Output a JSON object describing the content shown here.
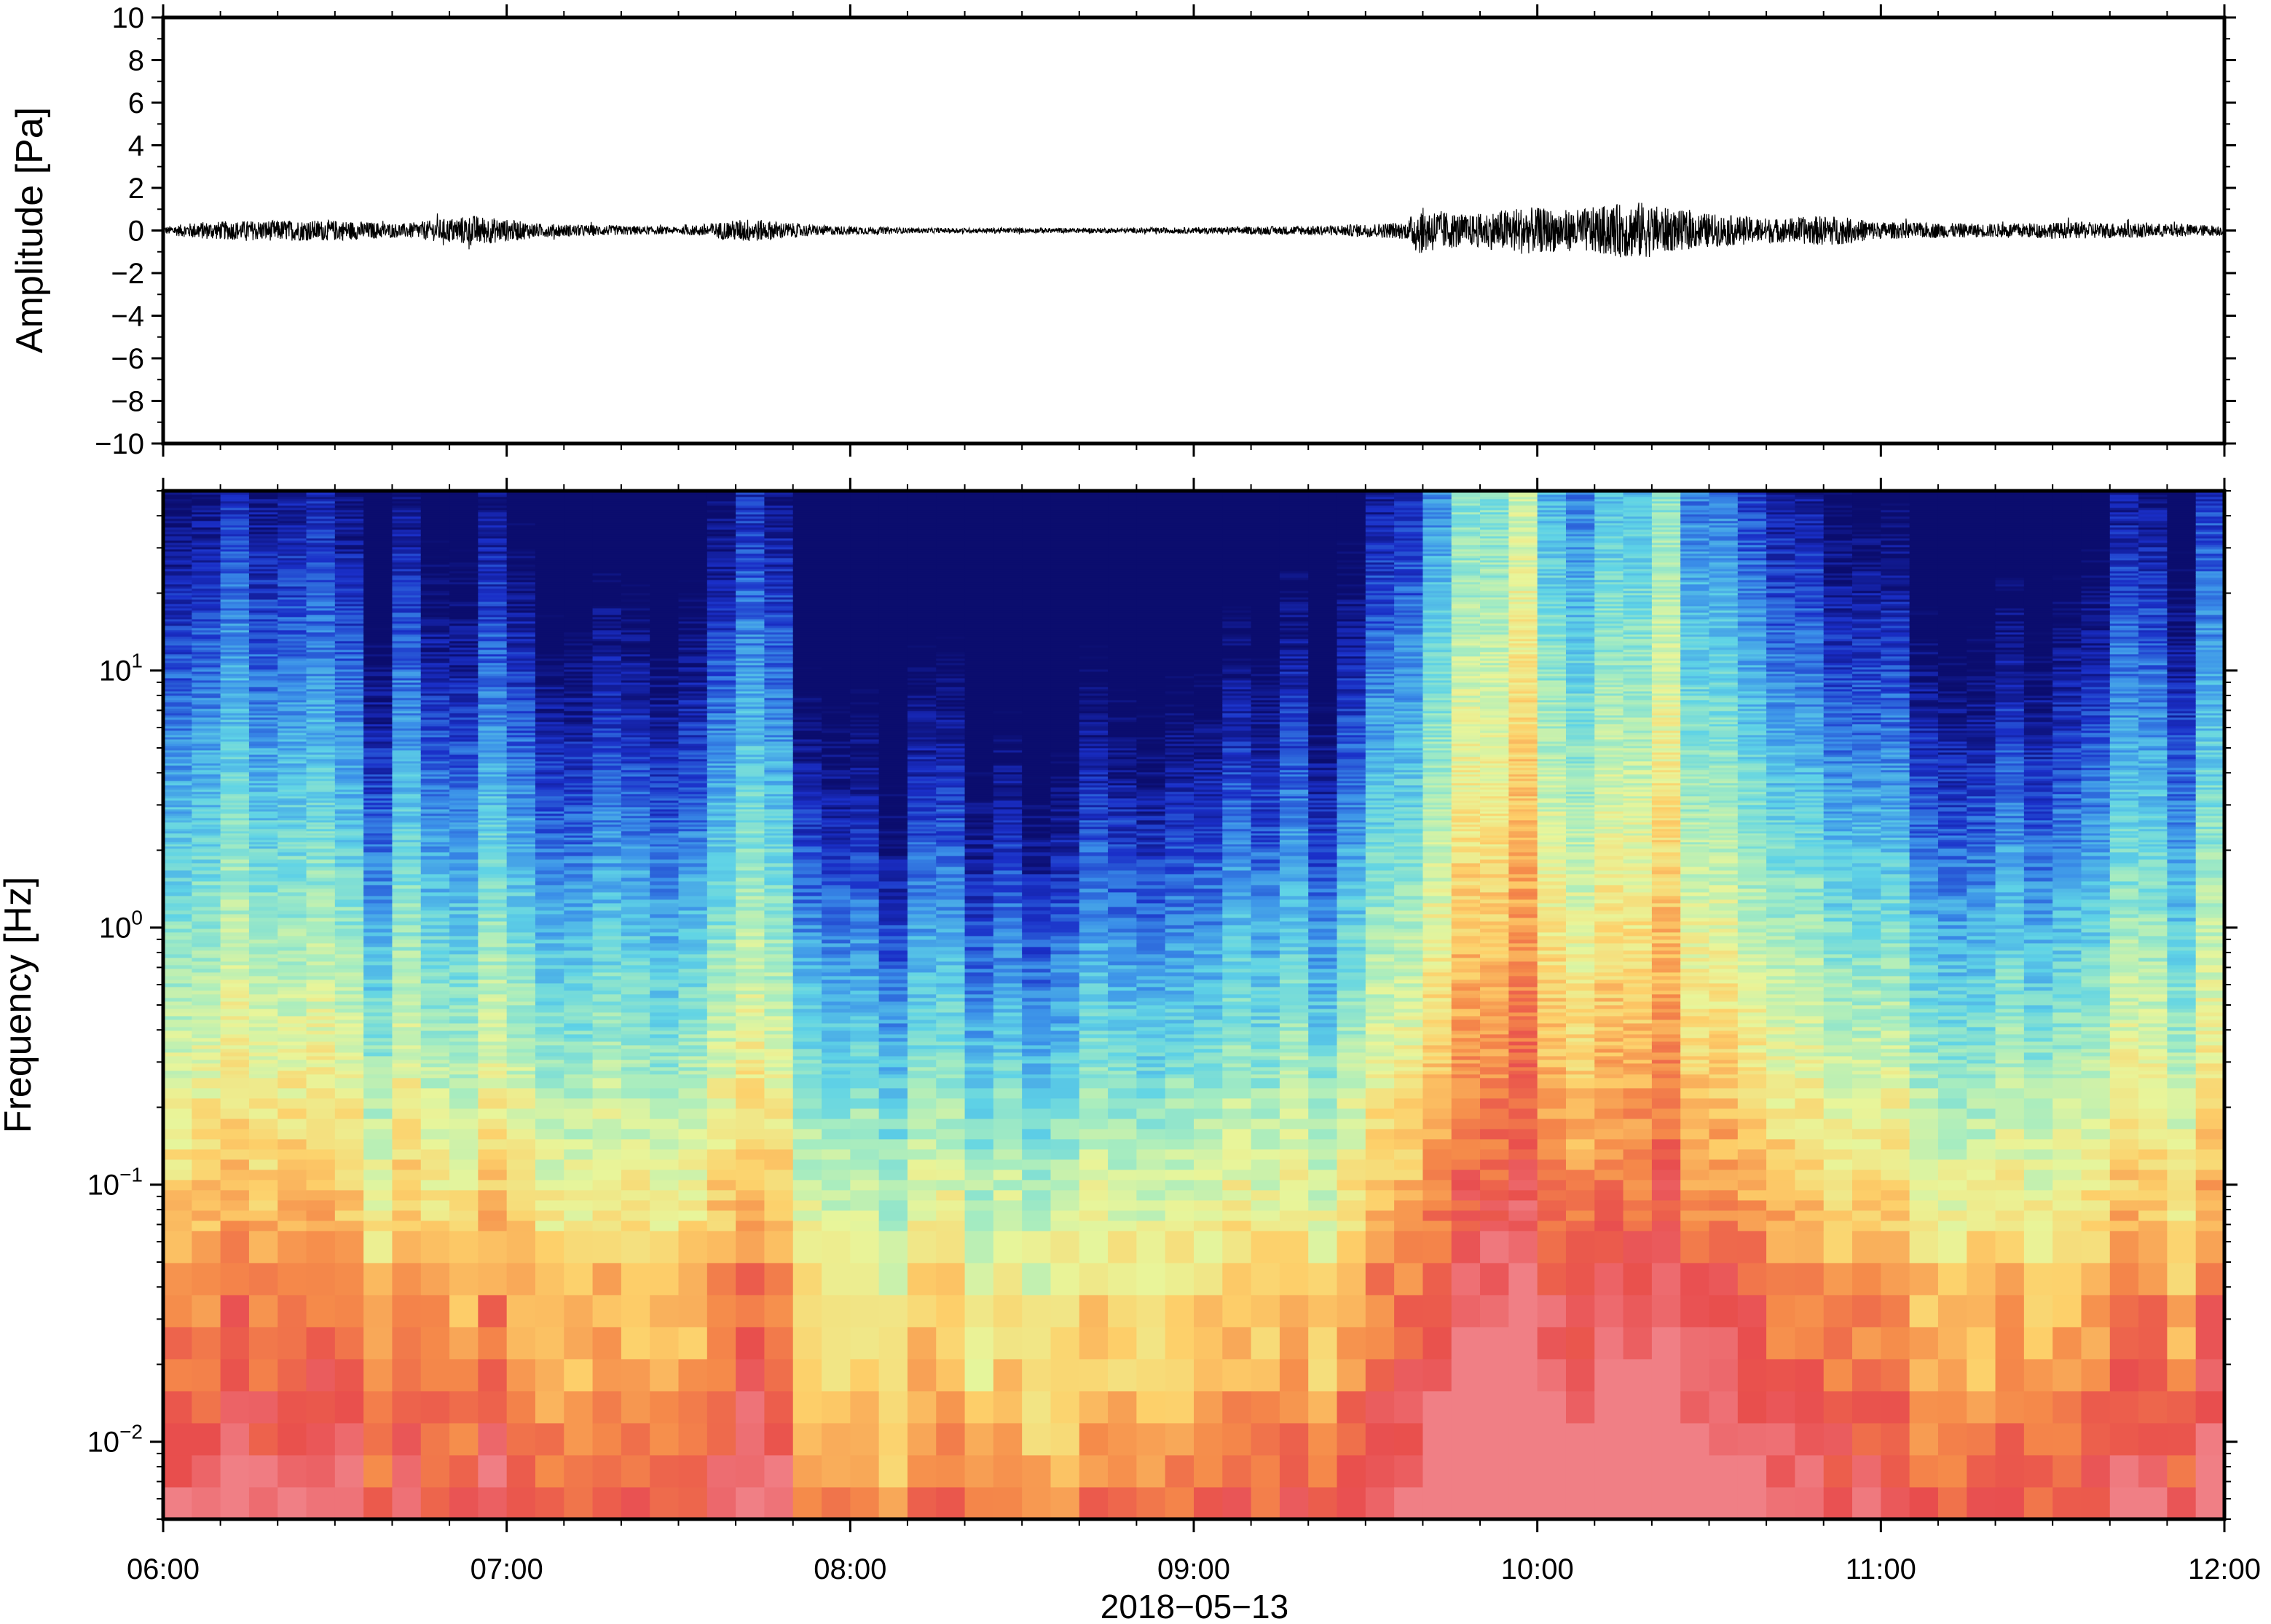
{
  "chart_data": [
    {
      "type": "line",
      "name": "waveform",
      "ylabel": "Amplitude [Pa]",
      "ylim": [
        -10,
        10
      ],
      "yticks": [
        10,
        8,
        6,
        4,
        2,
        0,
        -2,
        -4,
        -6,
        -8,
        -10
      ],
      "ytick_labels": [
        "10",
        "8",
        "6",
        "4",
        "2",
        "0",
        "−2",
        "−4",
        "−6",
        "−8",
        "−10"
      ],
      "xlim_hours": [
        6,
        12
      ],
      "grid": false,
      "color": "#000000",
      "envelope": {
        "hours": [
          6.0,
          6.1,
          6.3,
          6.5,
          6.7,
          6.9,
          7.1,
          7.3,
          7.5,
          7.7,
          7.9,
          8.2,
          8.5,
          8.8,
          9.1,
          9.4,
          9.62,
          9.65,
          9.8,
          9.95,
          10.1,
          10.25,
          10.3,
          10.4,
          10.55,
          10.7,
          10.85,
          11.0,
          11.3,
          11.6,
          11.8,
          12.0
        ],
        "amplitude": [
          0.2,
          0.5,
          0.6,
          0.6,
          0.4,
          0.9,
          0.4,
          0.3,
          0.2,
          0.7,
          0.3,
          0.15,
          0.15,
          0.15,
          0.2,
          0.3,
          0.5,
          1.4,
          0.9,
          1.4,
          1.2,
          1.6,
          1.7,
          1.2,
          0.9,
          0.7,
          0.9,
          0.5,
          0.4,
          0.5,
          0.4,
          0.3
        ]
      }
    },
    {
      "type": "heatmap",
      "name": "spectrogram",
      "ylabel": "Frequency [Hz]",
      "yscale": "log",
      "ylim": [
        0.005,
        50
      ],
      "yticks": [
        0.01,
        0.1,
        1,
        10
      ],
      "ytick_labels": [
        {
          "base": "10",
          "exp": "−2"
        },
        {
          "base": "10",
          "exp": "−1"
        },
        {
          "base": "10",
          "exp": "0"
        },
        {
          "base": "10",
          "exp": "1"
        }
      ],
      "xlim_hours": [
        6,
        12
      ],
      "xticks": [
        "06:00",
        "07:00",
        "08:00",
        "09:00",
        "10:00",
        "11:00",
        "12:00"
      ],
      "xlabel": "2018−05−13",
      "colormap": "spectral",
      "colormap_stops": [
        "#0b0d6e",
        "#1a2fc8",
        "#3a8ee8",
        "#5fd3e6",
        "#a6ecc0",
        "#e8f59a",
        "#fdd06a",
        "#f58a4a",
        "#e84d4d",
        "#f07f85"
      ],
      "activity_profile": {
        "hours": [
          6.0,
          6.15,
          6.35,
          6.55,
          6.75,
          6.9,
          7.05,
          7.25,
          7.45,
          7.65,
          7.8,
          8.0,
          8.3,
          8.6,
          8.9,
          9.1,
          9.3,
          9.5,
          9.65,
          9.8,
          9.95,
          10.1,
          10.25,
          10.35,
          10.5,
          10.65,
          10.8,
          11.0,
          11.2,
          11.4,
          11.6,
          11.8,
          12.0
        ],
        "energy": [
          0.45,
          0.65,
          0.7,
          0.6,
          0.5,
          0.65,
          0.55,
          0.45,
          0.4,
          0.7,
          0.5,
          0.3,
          0.3,
          0.35,
          0.3,
          0.5,
          0.4,
          0.5,
          0.75,
          0.9,
          1.0,
          0.9,
          0.95,
          1.0,
          0.85,
          0.75,
          0.6,
          0.6,
          0.5,
          0.55,
          0.55,
          0.6,
          0.6
        ]
      }
    }
  ]
}
